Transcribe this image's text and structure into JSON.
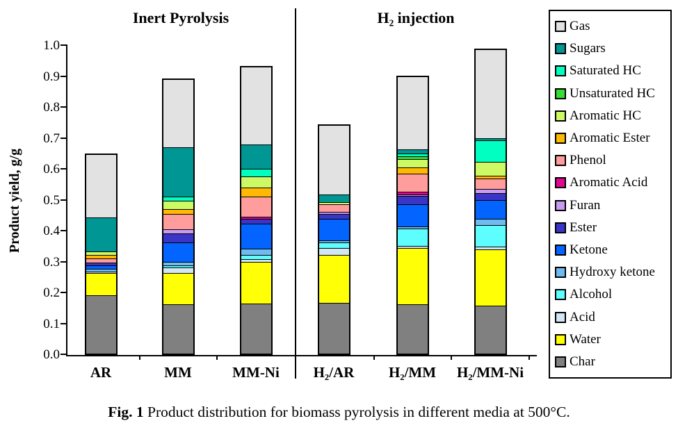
{
  "figure": {
    "caption_prefix": "Fig. 1",
    "caption_text": " Product distribution for biomass pyrolysis in different media at 500°C."
  },
  "chart_data": {
    "type": "bar",
    "stacked": true,
    "ylabel": "Product yield, g/g",
    "ylim": [
      0.0,
      1.0
    ],
    "ytick_step": 0.1,
    "grid": false,
    "legend_position": "right-outside",
    "panel_titles": [
      "Inert Pyrolysis",
      "H₂ injection"
    ],
    "panel_split_after_category": "MM-Ni",
    "categories": [
      "AR",
      "MM",
      "MM-Ni",
      "H₂/AR",
      "H₂/MM",
      "H₂/MM-Ni"
    ],
    "bar_totals": [
      0.651,
      0.895,
      0.935,
      0.745,
      0.903,
      0.992
    ],
    "series": [
      {
        "name": "Gas",
        "color": "#e2e2e2",
        "values": [
          0.206,
          0.224,
          0.254,
          0.227,
          0.239,
          0.292
        ]
      },
      {
        "name": "Sugars",
        "color": "#009693",
        "values": [
          0.112,
          0.16,
          0.08,
          0.024,
          0.012,
          0.005
        ]
      },
      {
        "name": "Saturated HC",
        "color": "#00ffc0",
        "values": [
          0,
          0.014,
          0.024,
          0,
          0.009,
          0.072
        ]
      },
      {
        "name": "Unsaturated HC",
        "color": "#35dd35",
        "values": [
          0,
          0,
          0,
          0,
          0.009,
          0
        ]
      },
      {
        "name": "Aromatic HC",
        "color": "#cdf964",
        "values": [
          0.012,
          0.026,
          0.038,
          0.008,
          0.027,
          0.045
        ]
      },
      {
        "name": "Aromatic Ester",
        "color": "#ffb804",
        "values": [
          0.011,
          0.018,
          0.028,
          0,
          0.021,
          0.008
        ]
      },
      {
        "name": "Phenol",
        "color": "#ff9c9c",
        "values": [
          0.013,
          0.048,
          0.066,
          0.024,
          0.059,
          0.034
        ]
      },
      {
        "name": "Aromatic Acid",
        "color": "#e00890",
        "values": [
          0,
          0,
          0.008,
          0,
          0.009,
          0
        ]
      },
      {
        "name": "Furan",
        "color": "#c79bf2",
        "values": [
          0,
          0.015,
          0,
          0.007,
          0.005,
          0.014
        ]
      },
      {
        "name": "Ester",
        "color": "#3a35c6",
        "values": [
          0.011,
          0.03,
          0.015,
          0.016,
          0.028,
          0.023
        ]
      },
      {
        "name": "Ketone",
        "color": "#0364ff",
        "values": [
          0.01,
          0.062,
          0.082,
          0.07,
          0.072,
          0.062
        ]
      },
      {
        "name": "Hydroxy ketone",
        "color": "#6fbbef",
        "values": [
          0.01,
          0.011,
          0.021,
          0.008,
          0.006,
          0.019
        ]
      },
      {
        "name": "Alcohol",
        "color": "#5ffefe",
        "values": [
          0,
          0.009,
          0.013,
          0.017,
          0.058,
          0.072
        ]
      },
      {
        "name": "Acid",
        "color": "#d2e7f6",
        "values": [
          0.004,
          0.018,
          0.009,
          0.023,
          0.006,
          0.008
        ]
      },
      {
        "name": "Water",
        "color": "#ffff05",
        "values": [
          0.072,
          0.102,
          0.137,
          0.158,
          0.185,
          0.185
        ]
      },
      {
        "name": "Char",
        "color": "#808080",
        "values": [
          0.19,
          0.158,
          0.16,
          0.163,
          0.158,
          0.153
        ]
      }
    ]
  }
}
